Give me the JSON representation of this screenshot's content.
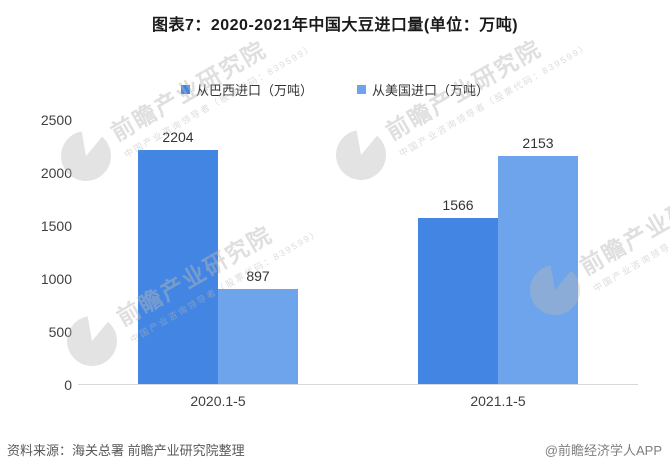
{
  "title": "图表7：2020-2021年中国大豆进口量(单位：万吨)",
  "watermark": {
    "brand": "前瞻产业研究院",
    "tagline": "中国产业咨询领导者（股票代码：839599）"
  },
  "footer": {
    "source": "资料来源：海关总署 前瞻产业研究院整理",
    "credit": "@前瞻经济学人APP"
  },
  "colors": {
    "brazil_bar": "#4285e2",
    "usa_bar": "#6da4ec",
    "axis_line": "#d9d9d9",
    "label_text": "#404040",
    "source_text": "#595959"
  },
  "chart_data": {
    "type": "bar",
    "title": "图表7：2020-2021年中国大豆进口量(单位：万吨)",
    "categories": [
      "2020.1-5",
      "2021.1-5"
    ],
    "series": [
      {
        "name": "从巴西进口（万吨）",
        "color": "#4285e2",
        "values": [
          2204,
          1566
        ]
      },
      {
        "name": "从美国进口（万吨）",
        "color": "#6da4ec",
        "values": [
          897,
          2153
        ]
      }
    ],
    "xlabel": "",
    "ylabel": "",
    "ylim": [
      0,
      2500
    ],
    "yticks": [
      0,
      500,
      1000,
      1500,
      2000,
      2500
    ],
    "grid": false,
    "legend_position": "top",
    "bar_value_labels": true
  }
}
